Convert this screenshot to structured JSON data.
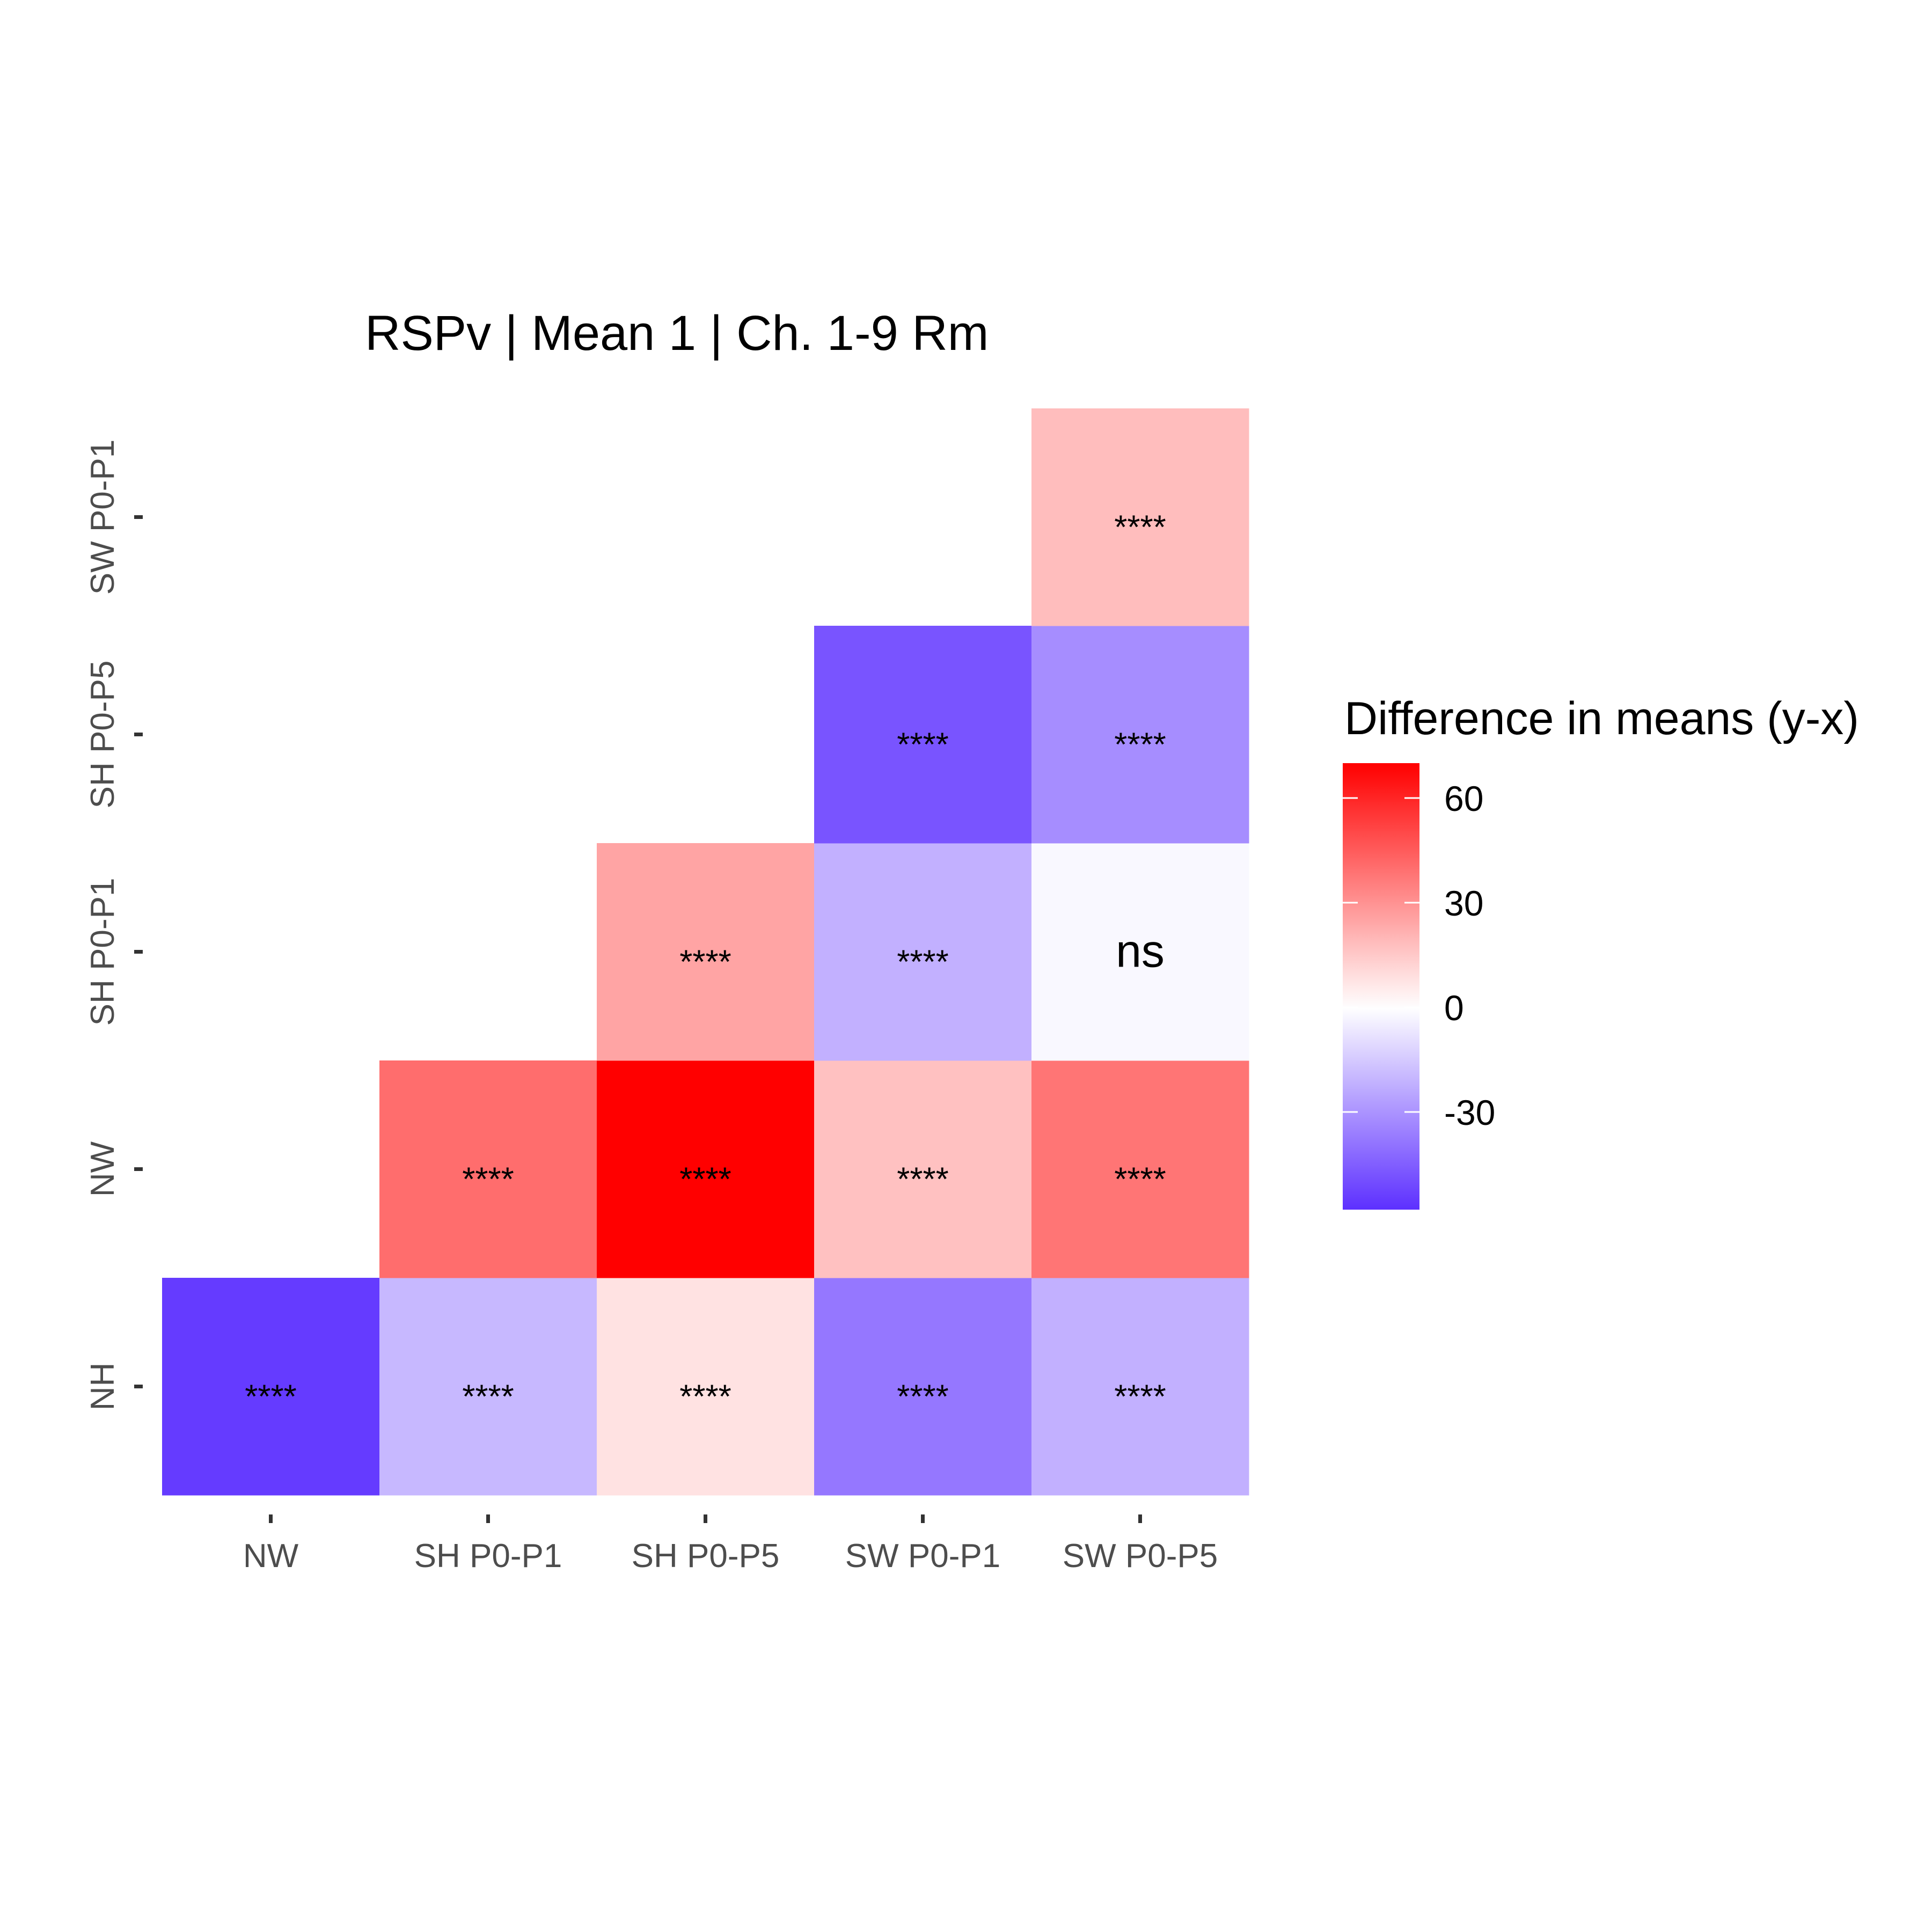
{
  "chart_data": {
    "type": "heatmap",
    "title": "RSPv | Mean 1 | Ch. 1-9 Rm",
    "x_categories": [
      "NW",
      "SH P0-P1",
      "SH P0-P5",
      "SW P0-P1",
      "SW P0-P5"
    ],
    "y_categories": [
      "NH",
      "NW",
      "SH P0-P1",
      "SH P0-P5",
      "SW P0-P1"
    ],
    "cells": [
      {
        "x": "NW",
        "y": "NH",
        "value": -55,
        "label": "****"
      },
      {
        "x": "SH P0-P1",
        "y": "NH",
        "value": -20,
        "label": "****"
      },
      {
        "x": "SH P0-P5",
        "y": "NH",
        "value": 8,
        "label": "****"
      },
      {
        "x": "SW P0-P1",
        "y": "NH",
        "value": -38,
        "label": "****"
      },
      {
        "x": "SW P0-P5",
        "y": "NH",
        "value": -22,
        "label": "****"
      },
      {
        "x": "SH P0-P1",
        "y": "NW",
        "value": 40,
        "label": "****"
      },
      {
        "x": "SH P0-P5",
        "y": "NW",
        "value": 70,
        "label": "****"
      },
      {
        "x": "SW P0-P1",
        "y": "NW",
        "value": 17,
        "label": "****"
      },
      {
        "x": "SW P0-P5",
        "y": "NW",
        "value": 38,
        "label": "****"
      },
      {
        "x": "SH P0-P5",
        "y": "SH P0-P1",
        "value": 25,
        "label": "****"
      },
      {
        "x": "SW P0-P1",
        "y": "SH P0-P1",
        "value": -22,
        "label": "****"
      },
      {
        "x": "SW P0-P5",
        "y": "SH P0-P1",
        "value": -2,
        "label": "ns"
      },
      {
        "x": "SW P0-P1",
        "y": "SH P0-P5",
        "value": -48,
        "label": "****"
      },
      {
        "x": "SW P0-P5",
        "y": "SH P0-P5",
        "value": -32,
        "label": "****"
      },
      {
        "x": "SW P0-P5",
        "y": "SW P0-P1",
        "value": 18,
        "label": "****"
      }
    ],
    "legend": {
      "title": "Difference in means (y-x)",
      "placement": "right",
      "ticks": [
        60,
        30,
        0,
        -30
      ],
      "range": [
        -58,
        70
      ],
      "colors": {
        "low": "#5d30ff",
        "mid": "#ffffff",
        "high": "#ff0000"
      }
    }
  }
}
